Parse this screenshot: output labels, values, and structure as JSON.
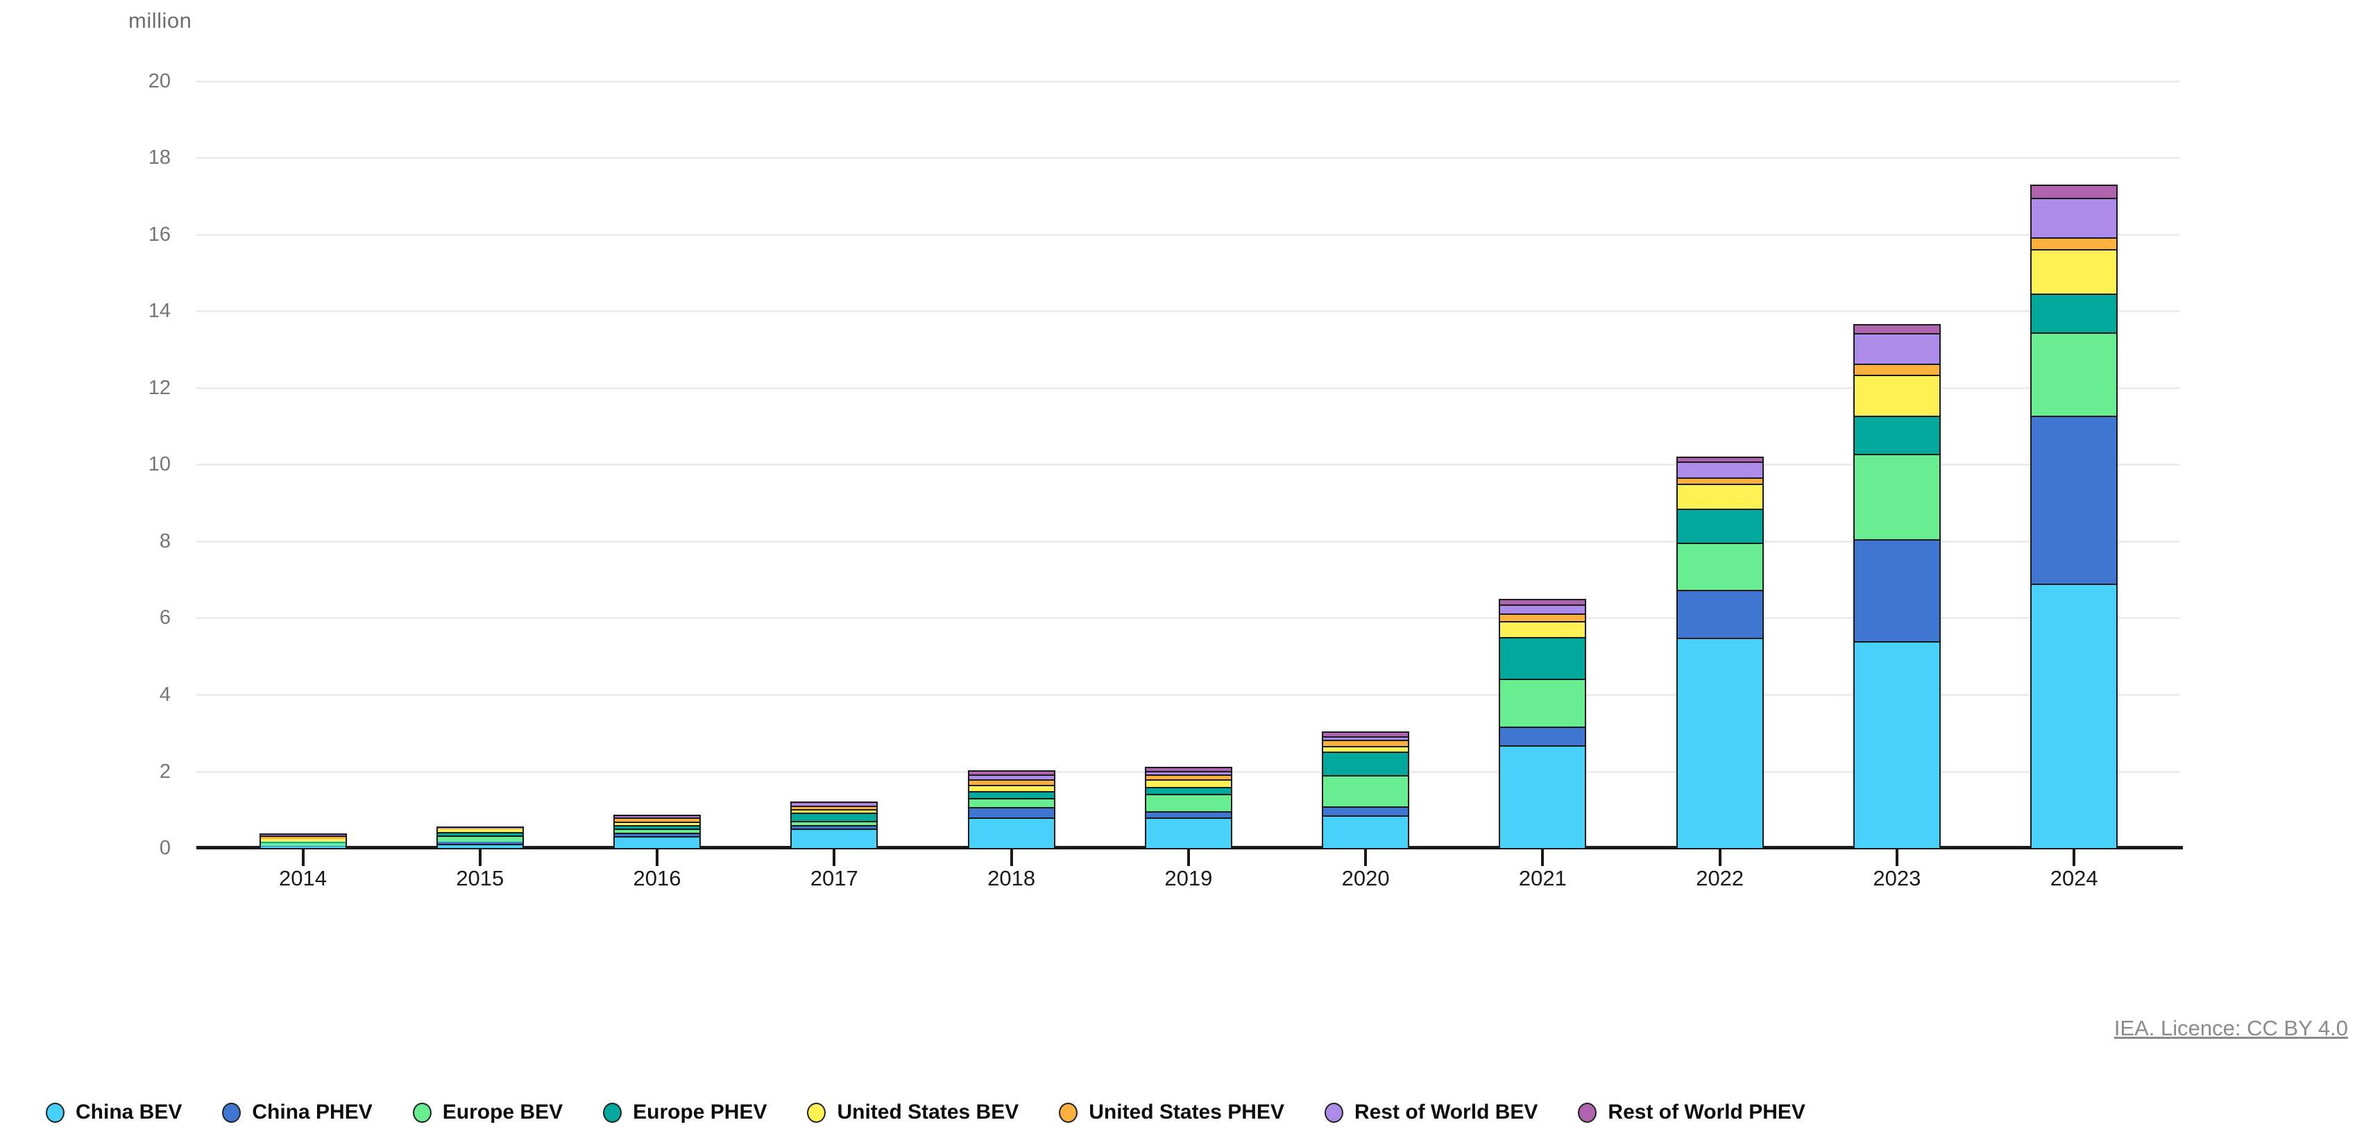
{
  "header": {
    "unit_label": "million"
  },
  "footer": {
    "licence_text": "IEA. Licence: CC BY 4.0"
  },
  "chart_data": {
    "type": "bar",
    "stacked": true,
    "title": "",
    "ylabel": "million",
    "xlabel": "",
    "ylim": [
      0,
      20
    ],
    "ytick_step": 2,
    "grid": true,
    "legend_position": "bottom",
    "categories": [
      "2014",
      "2015",
      "2016",
      "2017",
      "2018",
      "2019",
      "2020",
      "2021",
      "2022",
      "2023",
      "2024"
    ],
    "series": [
      {
        "name": "China BEV",
        "color": "#47d1fb",
        "values": [
          0.04,
          0.1,
          0.31,
          0.5,
          0.8,
          0.8,
          0.85,
          2.67,
          5.48,
          5.4,
          6.89
        ]
      },
      {
        "name": "China PHEV",
        "color": "#3e76d1",
        "values": [
          0.02,
          0.07,
          0.09,
          0.09,
          0.27,
          0.15,
          0.23,
          0.5,
          1.25,
          2.65,
          4.38
        ]
      },
      {
        "name": "Europe BEV",
        "color": "#68ee90",
        "values": [
          0.07,
          0.15,
          0.1,
          0.12,
          0.23,
          0.47,
          0.82,
          1.24,
          1.23,
          2.22,
          2.18
        ]
      },
      {
        "name": "Europe PHEV",
        "color": "#00a99b",
        "values": [
          0.03,
          0.09,
          0.09,
          0.21,
          0.18,
          0.18,
          0.61,
          1.09,
          0.89,
          1.01,
          1.0
        ]
      },
      {
        "name": "United States BEV",
        "color": "#fdf154",
        "values": [
          0.07,
          0.08,
          0.1,
          0.09,
          0.16,
          0.2,
          0.15,
          0.42,
          0.65,
          1.06,
          1.17
        ]
      },
      {
        "name": "United States PHEV",
        "color": "#fbaf3d",
        "values": [
          0.09,
          0.02,
          0.1,
          0.09,
          0.15,
          0.11,
          0.16,
          0.19,
          0.16,
          0.29,
          0.31
        ]
      },
      {
        "name": "Rest of World BEV",
        "color": "#ac8be9",
        "values": [
          0.02,
          0.015,
          0.03,
          0.05,
          0.12,
          0.09,
          0.09,
          0.25,
          0.42,
          0.8,
          1.02
        ]
      },
      {
        "name": "Rest of World PHEV",
        "color": "#ae65ae",
        "values": [
          0.01,
          0.005,
          0.01,
          0.03,
          0.08,
          0.09,
          0.09,
          0.1,
          0.09,
          0.2,
          0.31
        ]
      }
    ],
    "totals": [
      0.35,
      0.52,
      0.83,
      1.18,
      1.99,
      2.09,
      3.0,
      6.46,
      10.17,
      13.63,
      17.26
    ],
    "colors": {
      "gridline": "#ececec",
      "axis": "#1a1a1a",
      "y_tick_text": "#757575",
      "x_tick_text": "#1a1a1a",
      "unit_text": "#6f6f6f",
      "licence_text": "#8a8a8a"
    }
  }
}
